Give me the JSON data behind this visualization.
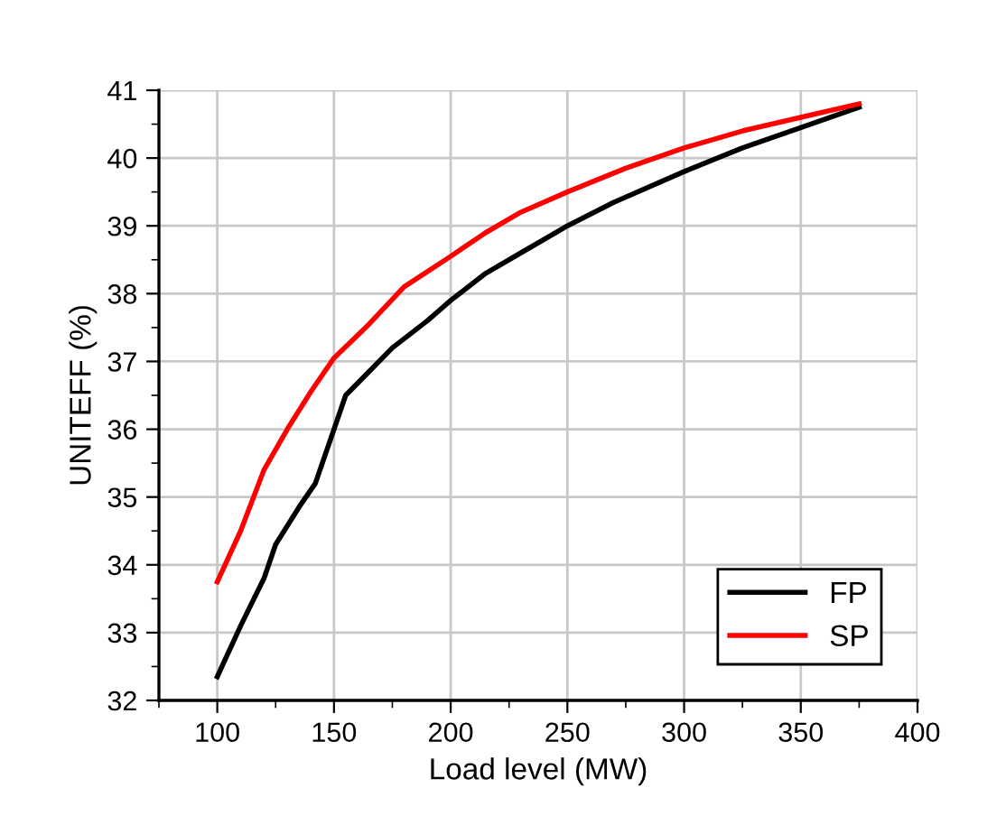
{
  "chart_data": {
    "type": "line",
    "xlabel": "Load level (MW)",
    "ylabel": "UNITEFF (%)",
    "xlim": [
      75,
      400
    ],
    "xticks": [
      100,
      150,
      200,
      250,
      300,
      350,
      400
    ],
    "ylim": [
      32,
      41
    ],
    "yticks": [
      32,
      33,
      34,
      35,
      36,
      37,
      38,
      39,
      40,
      41
    ],
    "grid": true,
    "legend": "bottom right",
    "marker": "none",
    "line_style": "solid",
    "series": [
      {
        "name": "FP",
        "color": "#000000",
        "x": [
          100,
          110,
          120,
          125,
          135,
          142,
          146,
          150,
          155,
          165,
          175,
          190,
          200,
          215,
          230,
          250,
          270,
          300,
          325,
          350,
          375
        ],
        "values": [
          32.35,
          33.1,
          33.8,
          34.3,
          34.85,
          35.2,
          35.6,
          36.0,
          36.5,
          36.85,
          37.2,
          37.6,
          37.9,
          38.3,
          38.6,
          39.0,
          39.35,
          39.8,
          40.15,
          40.45,
          40.75
        ]
      },
      {
        "name": "SP",
        "color": "#ff0000",
        "x": [
          100,
          110,
          120,
          130,
          140,
          150,
          165,
          180,
          200,
          215,
          230,
          250,
          275,
          300,
          325,
          350,
          375
        ],
        "values": [
          33.75,
          34.5,
          35.4,
          36.0,
          36.55,
          37.05,
          37.55,
          38.1,
          38.55,
          38.9,
          39.2,
          39.5,
          39.85,
          40.15,
          40.4,
          40.6,
          40.8
        ]
      }
    ]
  }
}
